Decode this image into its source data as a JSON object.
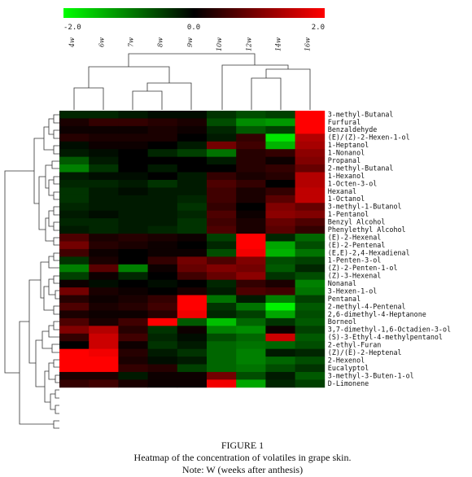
{
  "chart_data": {
    "type": "heatmap",
    "title": "",
    "xlabel": "",
    "ylabel": "",
    "colorbar": {
      "min": -2.0,
      "max": 2.0,
      "ticks": [
        "-2.0",
        "0.0",
        "2.0"
      ],
      "low_color": "#00ff00",
      "mid_color": "#000000",
      "high_color": "#ff0000"
    },
    "columns": [
      "4w",
      "6w",
      "7w",
      "8w",
      "9w",
      "10w",
      "12w",
      "14w",
      "16w"
    ],
    "rows": [
      "3-methyl-Butanal",
      "Furfural",
      "Benzaldehyde",
      "(E)/(Z)-2-Hexen-1-ol",
      "1-Heptanol",
      "1-Nonanol",
      "Propanal",
      "2-methyl-Butanal",
      "1-Hexanol",
      "1-Octen-3-ol",
      "Hexanal",
      "1-Octanol",
      "3-methyl-1-Butanol",
      "1-Pentanol",
      "Benzyl Alcohol",
      "Phenylethyl Alcohol",
      "(E)-2-Hexenal",
      "(E)-2-Pentenal",
      "(E,E)-2,4-Hexadienal",
      "1-Penten-3-ol",
      "(Z)-2-Penten-1-ol",
      "(Z)-3-Hexenal",
      "Nonanal",
      "3-Hexen-1-ol",
      "Pentanal",
      "2-methyl-4-Pentenal",
      "2,6-dimethyl-4-Heptanone",
      "Borneol",
      "3,7-dimethyl-1,6-Octadien-3-ol",
      "(S)-3-Ethyl-4-methylpentanol",
      "2-ethyl-Furan",
      "(Z)/(E)-2-Heptenal",
      "2-Hexenol",
      "Eucalyptol",
      "3-methyl-3-Buten-1-ol",
      "D-Limonene"
    ],
    "values": [
      [
        -0.3,
        -0.3,
        -0.2,
        -0.1,
        -0.1,
        -0.4,
        -0.6,
        -0.5,
        2.0
      ],
      [
        0.2,
        0.4,
        0.4,
        0.3,
        0.2,
        -0.6,
        -1.1,
        -1.2,
        2.0
      ],
      [
        0.1,
        0.1,
        0.1,
        0.2,
        0.1,
        -0.3,
        -0.7,
        -0.5,
        2.0
      ],
      [
        0.3,
        0.2,
        0.2,
        0.2,
        0.0,
        -0.2,
        0.4,
        -1.8,
        1.4
      ],
      [
        -0.1,
        0.1,
        0.1,
        0.0,
        -0.2,
        0.9,
        0.5,
        -1.4,
        1.3
      ],
      [
        -0.2,
        -0.1,
        0.0,
        -0.3,
        -0.5,
        -0.9,
        0.3,
        0.4,
        1.1
      ],
      [
        -0.7,
        -0.2,
        0.0,
        0.0,
        0.0,
        -0.2,
        0.3,
        0.1,
        1.0
      ],
      [
        -1.0,
        -0.4,
        0.0,
        -0.2,
        0.0,
        0.0,
        0.3,
        0.4,
        0.8
      ],
      [
        -0.2,
        -0.1,
        -0.1,
        0.0,
        -0.2,
        0.4,
        0.2,
        0.3,
        1.4
      ],
      [
        -0.3,
        -0.3,
        -0.2,
        -0.4,
        -0.2,
        0.6,
        0.4,
        0.0,
        1.4
      ],
      [
        -0.4,
        -0.2,
        -0.1,
        -0.2,
        -0.2,
        0.5,
        0.2,
        0.4,
        1.5
      ],
      [
        -0.4,
        -0.2,
        -0.2,
        -0.2,
        -0.3,
        0.5,
        0.2,
        0.7,
        1.5
      ],
      [
        -0.3,
        -0.2,
        -0.2,
        -0.2,
        -0.4,
        0.4,
        0.0,
        1.0,
        0.8
      ],
      [
        -0.2,
        -0.1,
        -0.2,
        -0.2,
        -0.3,
        0.6,
        0.1,
        1.1,
        1.0
      ],
      [
        -0.3,
        -0.3,
        -0.2,
        -0.2,
        -0.4,
        0.5,
        0.2,
        0.8,
        0.6
      ],
      [
        -0.2,
        -0.3,
        -0.2,
        -0.3,
        -0.4,
        0.6,
        0.2,
        0.7,
        0.4
      ],
      [
        0.6,
        0.2,
        0.3,
        0.2,
        0.1,
        -0.5,
        2.0,
        -0.3,
        -0.8
      ],
      [
        0.9,
        0.3,
        0.2,
        0.1,
        0.0,
        -0.3,
        2.0,
        -1.3,
        -0.6
      ],
      [
        0.5,
        0.1,
        0.0,
        0.1,
        0.1,
        -0.6,
        1.9,
        -1.4,
        -0.9
      ],
      [
        -0.4,
        0.2,
        0.0,
        0.4,
        0.9,
        0.6,
        1.0,
        -0.6,
        -0.5
      ],
      [
        -1.0,
        0.7,
        -1.0,
        0.1,
        0.8,
        1.0,
        0.9,
        -0.7,
        -0.3
      ],
      [
        -0.5,
        0.1,
        -0.3,
        0.0,
        0.5,
        0.8,
        1.1,
        -0.4,
        -0.6
      ],
      [
        0.1,
        -0.1,
        0.0,
        -0.1,
        0.0,
        -0.3,
        0.4,
        0.2,
        -1.0
      ],
      [
        0.9,
        0.2,
        0.1,
        0.0,
        0.2,
        -0.2,
        0.6,
        0.5,
        -0.9
      ],
      [
        0.3,
        0.1,
        0.2,
        0.4,
        2.0,
        -0.9,
        -0.2,
        -1.0,
        -0.5
      ],
      [
        0.6,
        0.2,
        0.3,
        0.5,
        2.0,
        -0.4,
        -0.9,
        -1.9,
        -0.7
      ],
      [
        0.2,
        0.1,
        0.1,
        0.3,
        1.9,
        -0.3,
        -0.5,
        -1.3,
        -0.6
      ],
      [
        0.6,
        0.2,
        0.5,
        2.0,
        -0.7,
        -1.5,
        -0.8,
        -0.4,
        -0.7
      ],
      [
        1.0,
        1.4,
        0.3,
        -0.4,
        0.1,
        -1.0,
        -1.1,
        0.1,
        -0.5
      ],
      [
        0.4,
        1.6,
        0.5,
        -0.3,
        -0.1,
        -0.6,
        -0.8,
        1.6,
        -0.7
      ],
      [
        0.0,
        1.6,
        0.1,
        -0.4,
        -0.2,
        -0.8,
        -0.9,
        -0.8,
        -0.6
      ],
      [
        2.0,
        1.9,
        0.3,
        -0.2,
        -0.4,
        -0.8,
        -1.0,
        -0.2,
        -0.3
      ],
      [
        2.0,
        2.0,
        0.2,
        -0.1,
        -0.2,
        -0.8,
        -1.0,
        -0.8,
        -0.6
      ],
      [
        2.0,
        2.0,
        0.4,
        0.3,
        -0.5,
        -0.8,
        -0.9,
        -0.6,
        -0.4
      ],
      [
        0.2,
        0.2,
        -0.2,
        0.1,
        0.1,
        0.9,
        -0.6,
        -0.2,
        -0.7
      ],
      [
        0.4,
        0.5,
        0.2,
        0.1,
        0.1,
        1.9,
        -1.3,
        -0.3,
        -0.5
      ]
    ]
  },
  "caption": {
    "line1": "FIGURE 1",
    "line2": "Heatmap of the concentration of volatiles in grape skin.",
    "line3": "Note: W (weeks after anthesis)"
  }
}
